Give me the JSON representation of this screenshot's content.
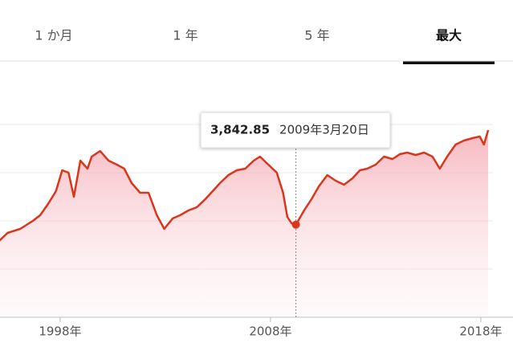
{
  "tabs": [
    {
      "label": "1 か月"
    },
    {
      "label": "1 年"
    },
    {
      "label": "5 年"
    },
    {
      "label": "最大",
      "selected": true
    }
  ],
  "chart_data": {
    "type": "line",
    "color": "#d9361b",
    "grid": true,
    "xlim": [
      1995.14,
      2019.53
    ],
    "ylim": [
      0,
      10000
    ],
    "xticks": [
      {
        "value": 1998,
        "label": "1998年"
      },
      {
        "value": 2008,
        "label": "2008年"
      },
      {
        "value": 2018,
        "label": "2018年"
      }
    ],
    "yticks": [
      2000,
      4000,
      6000,
      8000
    ],
    "x": [
      1995.1,
      1995.5,
      1996.1,
      1996.7,
      1997.05,
      1997.4,
      1997.8,
      1998.1,
      1998.4,
      1998.65,
      1998.96,
      1999.3,
      1999.5,
      1999.9,
      2000.3,
      2000.7,
      2001.05,
      2001.4,
      2001.8,
      2002.2,
      2002.6,
      2002.95,
      2003.35,
      2003.7,
      2004.1,
      2004.5,
      2004.9,
      2005.25,
      2005.6,
      2006.0,
      2006.4,
      2006.8,
      2007.2,
      2007.5,
      2007.9,
      2008.3,
      2008.6,
      2008.8,
      2009.0,
      2009.21,
      2009.6,
      2009.95,
      2010.3,
      2010.7,
      2011.1,
      2011.5,
      2011.9,
      2012.25,
      2012.6,
      2013.0,
      2013.4,
      2013.8,
      2014.15,
      2014.5,
      2014.9,
      2015.3,
      2015.7,
      2016.05,
      2016.4,
      2016.8,
      2017.2,
      2017.6,
      2017.95,
      2018.15,
      2018.35
    ],
    "values": [
      3167,
      3500,
      3667,
      4000,
      4233,
      4667,
      5233,
      6100,
      6000,
      5000,
      6500,
      6167,
      6667,
      6900,
      6500,
      6333,
      6167,
      5567,
      5167,
      5167,
      4233,
      3667,
      4100,
      4233,
      4433,
      4567,
      4900,
      5233,
      5567,
      5900,
      6100,
      6167,
      6500,
      6667,
      6333,
      6000,
      5167,
      4167,
      3900,
      3842.85,
      4433,
      4900,
      5433,
      5900,
      5667,
      5500,
      5767,
      6100,
      6167,
      6333,
      6667,
      6567,
      6767,
      6833,
      6733,
      6833,
      6667,
      6167,
      6667,
      7167,
      7333,
      7433,
      7500,
      7167,
      7767
    ],
    "tooltip": {
      "x": 2009.21,
      "value": 3842.85,
      "value_label": "3,842.85",
      "date": "2009年3月20日"
    }
  }
}
